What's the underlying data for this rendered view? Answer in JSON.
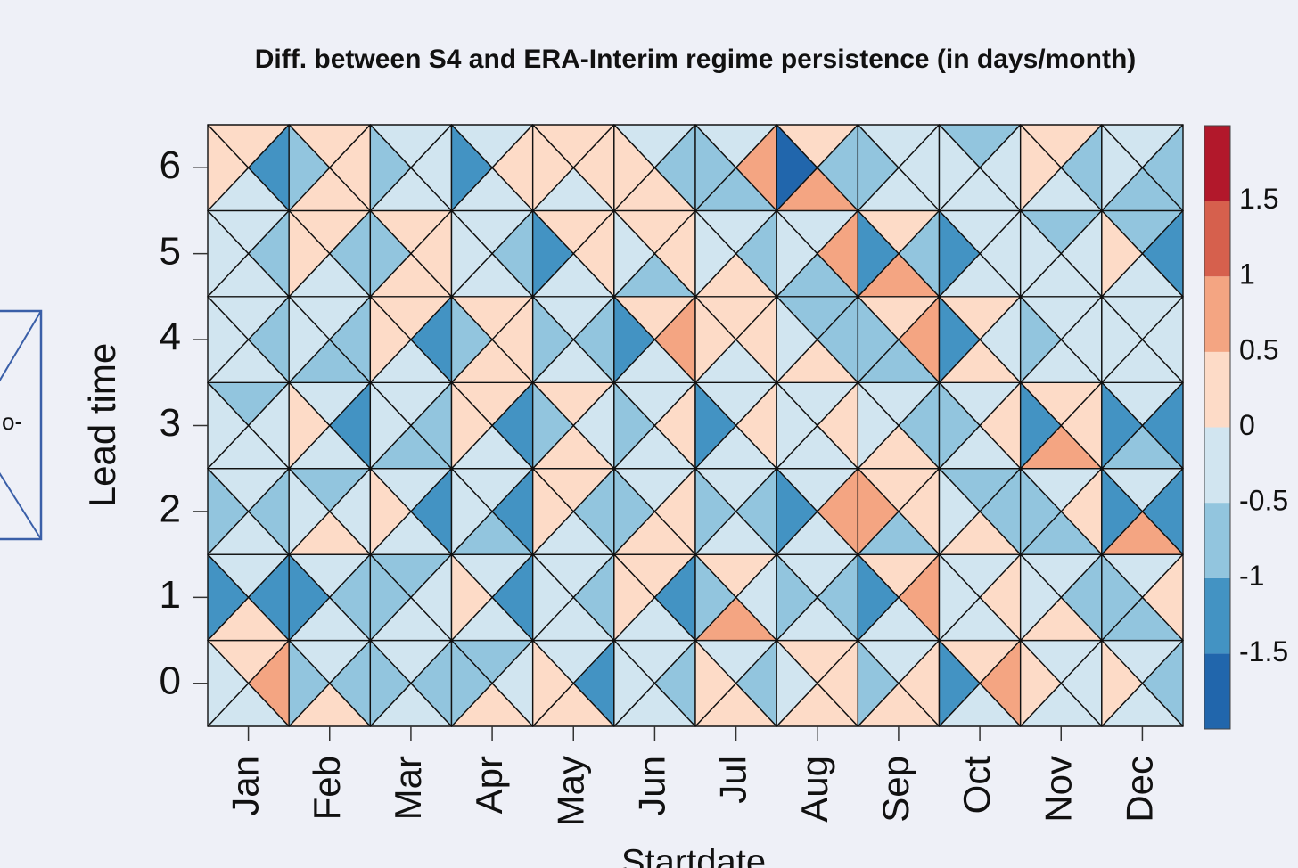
{
  "fragment_label": "o-",
  "chart_data": {
    "type": "triangle-heatmap",
    "title": "Diff. between S4 and ERA-Interim regime persistence (in days/month)",
    "xlabel": "Startdate",
    "ylabel": "Lead time",
    "categories": [
      "Jan",
      "Feb",
      "Mar",
      "Apr",
      "May",
      "Jun",
      "Jul",
      "Aug",
      "Sep",
      "Oct",
      "Nov",
      "Dec"
    ],
    "ylim": [
      -0.5,
      6.5
    ],
    "yticks": [
      0,
      1,
      2,
      3,
      4,
      5,
      6
    ],
    "values": [
      [
        [
          0.25,
          0.75,
          -0.25,
          -0.25
        ],
        [
          -0.25,
          -0.75,
          0.25,
          -0.75
        ],
        [
          -0.25,
          -0.75,
          -0.25,
          -0.75
        ],
        [
          -0.75,
          -0.25,
          0.25,
          -0.75
        ],
        [
          -0.25,
          -1.25,
          0.25,
          0.25
        ],
        [
          -0.25,
          -0.75,
          -0.25,
          -0.25
        ],
        [
          -0.25,
          -0.75,
          0.25,
          0.25
        ],
        [
          0.25,
          0.25,
          0.25,
          -0.25
        ],
        [
          -0.25,
          0.25,
          0.25,
          -0.75
        ],
        [
          0.25,
          0.75,
          -0.25,
          -1.25
        ],
        [
          -0.25,
          -0.25,
          -0.25,
          0.25
        ],
        [
          -0.25,
          -0.75,
          -0.25,
          0.25
        ]
      ],
      [
        [
          -0.25,
          -1.25,
          0.25,
          -1.25
        ],
        [
          -0.25,
          -0.75,
          -0.25,
          -1.25
        ],
        [
          -0.75,
          -0.25,
          -0.25,
          -0.75
        ],
        [
          -0.25,
          -1.25,
          -0.25,
          0.25
        ],
        [
          -0.25,
          -0.75,
          -0.25,
          -0.25
        ],
        [
          0.25,
          -1.25,
          -0.25,
          0.25
        ],
        [
          0.25,
          -0.25,
          0.75,
          -0.75
        ],
        [
          -0.25,
          -0.75,
          -0.25,
          -0.75
        ],
        [
          0.25,
          0.75,
          -0.25,
          -1.25
        ],
        [
          -0.25,
          0.25,
          -0.25,
          -0.25
        ],
        [
          -0.25,
          -0.75,
          0.25,
          -0.25
        ],
        [
          -0.25,
          0.25,
          -0.75,
          -0.75
        ]
      ],
      [
        [
          -0.25,
          -0.75,
          -0.25,
          -0.75
        ],
        [
          -0.75,
          -0.25,
          0.25,
          -0.25
        ],
        [
          -0.25,
          -1.25,
          -0.25,
          0.25
        ],
        [
          -0.25,
          -1.25,
          -0.75,
          -0.25
        ],
        [
          0.25,
          -0.75,
          -0.25,
          0.25
        ],
        [
          -0.25,
          0.25,
          0.25,
          -0.75
        ],
        [
          -0.25,
          -0.75,
          -0.25,
          -0.75
        ],
        [
          -0.25,
          0.75,
          -0.25,
          -1.25
        ],
        [
          0.25,
          0.25,
          -0.75,
          0.75
        ],
        [
          -0.75,
          -0.75,
          0.25,
          -0.25
        ],
        [
          -0.25,
          0.25,
          -0.75,
          -0.75
        ],
        [
          -0.25,
          -1.25,
          0.75,
          -1.25
        ]
      ],
      [
        [
          -0.75,
          -0.25,
          -0.25,
          -0.25
        ],
        [
          -0.25,
          -1.25,
          -0.25,
          0.25
        ],
        [
          -0.25,
          -0.75,
          -0.75,
          -0.25
        ],
        [
          0.25,
          -1.25,
          -0.25,
          0.25
        ],
        [
          0.25,
          -0.25,
          0.25,
          -0.75
        ],
        [
          -0.25,
          0.25,
          -0.25,
          -0.75
        ],
        [
          -0.25,
          0.25,
          -0.25,
          -1.25
        ],
        [
          -0.25,
          0.25,
          -0.25,
          -0.25
        ],
        [
          -0.25,
          -0.75,
          0.25,
          -0.25
        ],
        [
          -0.25,
          0.25,
          -0.25,
          -0.75
        ],
        [
          0.25,
          0.25,
          0.75,
          -1.25
        ],
        [
          -0.25,
          -1.25,
          -0.75,
          -1.25
        ]
      ],
      [
        [
          -0.25,
          -0.75,
          -0.25,
          -0.25
        ],
        [
          -0.25,
          -0.75,
          -0.75,
          -0.25
        ],
        [
          0.25,
          -1.25,
          -0.25,
          0.25
        ],
        [
          0.25,
          0.25,
          0.25,
          -0.75
        ],
        [
          -0.25,
          -0.75,
          -0.25,
          -0.75
        ],
        [
          0.25,
          0.75,
          -0.25,
          -1.25
        ],
        [
          0.25,
          0.25,
          -0.25,
          0.25
        ],
        [
          -0.75,
          -0.75,
          0.25,
          -0.25
        ],
        [
          0.25,
          0.75,
          -0.75,
          -0.75
        ],
        [
          0.25,
          -0.25,
          0.25,
          -1.25
        ],
        [
          -0.25,
          -0.25,
          -0.25,
          -0.75
        ],
        [
          -0.25,
          -0.25,
          -0.25,
          -0.25
        ]
      ],
      [
        [
          -0.25,
          -0.75,
          -0.25,
          -0.25
        ],
        [
          0.25,
          -0.75,
          -0.25,
          0.25
        ],
        [
          0.25,
          0.25,
          0.25,
          -0.75
        ],
        [
          -0.25,
          -0.75,
          -0.25,
          -0.25
        ],
        [
          0.25,
          0.25,
          -0.25,
          -1.25
        ],
        [
          0.25,
          0.25,
          -0.75,
          -0.25
        ],
        [
          -0.25,
          -0.75,
          0.25,
          -0.25
        ],
        [
          -0.25,
          0.75,
          -0.75,
          -0.25
        ],
        [
          0.25,
          -0.75,
          0.75,
          -1.25
        ],
        [
          -0.25,
          -0.25,
          -0.25,
          -1.25
        ],
        [
          -0.75,
          -0.25,
          -0.25,
          -0.25
        ],
        [
          -0.75,
          -1.25,
          -0.25,
          0.25
        ]
      ],
      [
        [
          0.25,
          -1.25,
          -0.25,
          0.25
        ],
        [
          0.25,
          0.25,
          0.25,
          -0.75
        ],
        [
          -0.25,
          -0.25,
          -0.25,
          -0.75
        ],
        [
          -0.25,
          0.25,
          -0.25,
          -1.25
        ],
        [
          0.25,
          0.25,
          -0.25,
          0.25
        ],
        [
          -0.25,
          -0.75,
          0.25,
          0.25
        ],
        [
          -0.25,
          0.75,
          -0.75,
          -0.75
        ],
        [
          0.25,
          -0.75,
          0.75,
          -1.75
        ],
        [
          -0.25,
          -0.25,
          -0.25,
          -0.75
        ],
        [
          -0.75,
          -0.25,
          -0.25,
          -0.25
        ],
        [
          0.25,
          -0.75,
          -0.25,
          0.25
        ],
        [
          -0.25,
          -0.75,
          -0.75,
          -0.25
        ]
      ]
    ],
    "colorbar": {
      "breaks": [
        -2,
        -1.5,
        -1,
        -0.5,
        0,
        0.5,
        1,
        1.5,
        2
      ],
      "colors": [
        "#2166ac",
        "#4393c3",
        "#92c5de",
        "#d1e5f0",
        "#fddbc7",
        "#f4a582",
        "#d6604d",
        "#b2182b"
      ],
      "ticks": [
        -1.5,
        -1,
        -0.5,
        0,
        0.5,
        1,
        1.5
      ]
    }
  }
}
